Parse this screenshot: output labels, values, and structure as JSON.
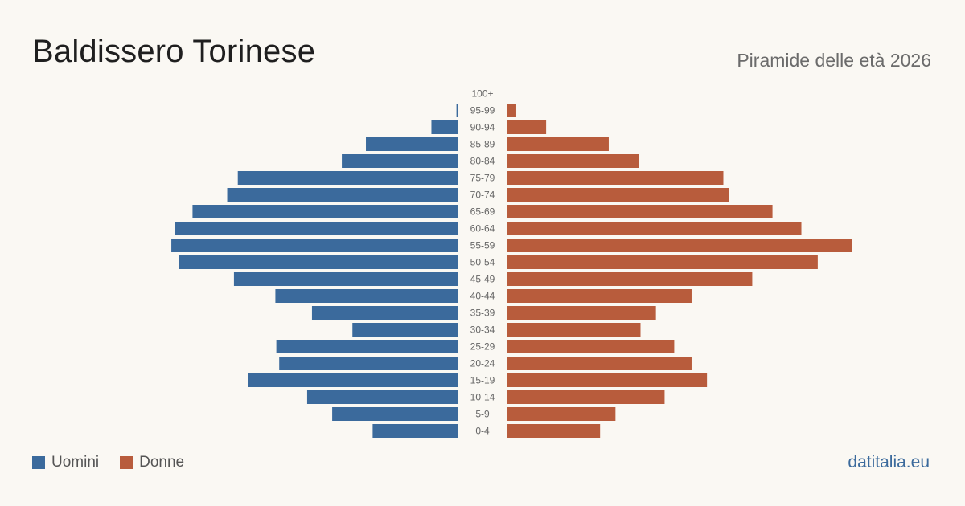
{
  "title": "Baldissero Torinese",
  "subtitle": "Piramide delle età 2026",
  "source": "datitalia.eu",
  "colors": {
    "men": "#3b6a9c",
    "women": "#b85c3c",
    "label": "#666666"
  },
  "legend": {
    "men": "Uomini",
    "women": "Donne"
  },
  "chart_data": {
    "type": "bar",
    "orientation": "horizontal",
    "layout": "population-pyramid",
    "categories": [
      "100+",
      "95-99",
      "90-94",
      "85-89",
      "80-84",
      "75-79",
      "70-74",
      "65-69",
      "60-64",
      "55-59",
      "50-54",
      "45-49",
      "40-44",
      "35-39",
      "30-34",
      "25-29",
      "20-24",
      "15-19",
      "10-14",
      "5-9",
      "0-4"
    ],
    "series": [
      {
        "name": "Uomini",
        "values": [
          0,
          2,
          28,
          96,
          121,
          229,
          240,
          276,
          294,
          298,
          290,
          233,
          190,
          152,
          110,
          189,
          186,
          218,
          157,
          131,
          89
        ]
      },
      {
        "name": "Donne",
        "values": [
          0,
          10,
          41,
          106,
          137,
          225,
          231,
          276,
          306,
          359,
          323,
          255,
          192,
          155,
          139,
          174,
          192,
          208,
          164,
          113,
          97
        ]
      }
    ]
  }
}
